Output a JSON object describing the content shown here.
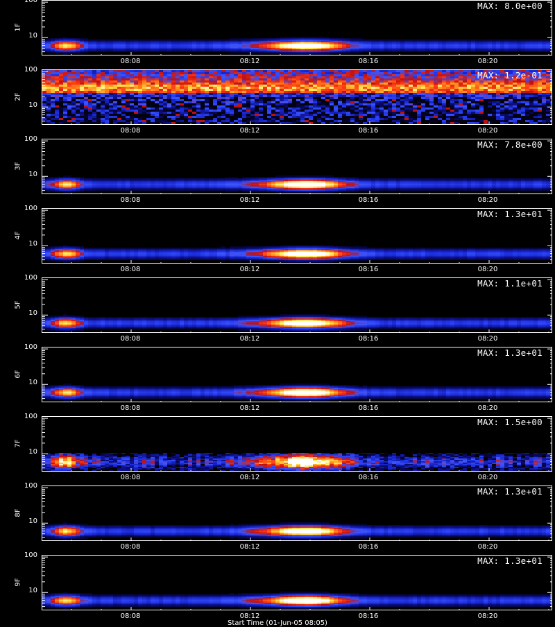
{
  "chart_data": {
    "type": "heatmap",
    "description_type": "stacked spectrogram panels",
    "x_tick_labels": [
      "08:08",
      "08:12",
      "08:16",
      "08:20"
    ],
    "y_tick_labels": [
      "10",
      "100"
    ],
    "y_scale": "log",
    "ylim": [
      3,
      110
    ],
    "colormap": [
      "#000000",
      "#0a0a6e",
      "#1a2ad8",
      "#3b55ff",
      "#c01010",
      "#ff3a14",
      "#ff8c1a",
      "#ffe74a",
      "#ffffff"
    ],
    "panels": [
      {
        "label": "1F",
        "max_label": "MAX: 8.0e+00",
        "type": "band"
      },
      {
        "label": "2F",
        "max_label": "MAX: 1.2e-01",
        "type": "noise"
      },
      {
        "label": "3F",
        "max_label": "MAX: 7.8e+00",
        "type": "band"
      },
      {
        "label": "4F",
        "max_label": "MAX: 1.3e+01",
        "type": "band"
      },
      {
        "label": "5F",
        "max_label": "MAX: 1.1e+01",
        "type": "band"
      },
      {
        "label": "6F",
        "max_label": "MAX: 1.3e+01",
        "type": "band"
      },
      {
        "label": "7F",
        "max_label": "MAX: 1.5e+00",
        "type": "noisyband"
      },
      {
        "label": "8F",
        "max_label": "MAX: 1.3e+01",
        "type": "band"
      },
      {
        "label": "9F",
        "max_label": "MAX: 1.3e+01",
        "type": "band"
      }
    ]
  },
  "x_axis_title": "Start Time (01-Jun-05 08:05)"
}
